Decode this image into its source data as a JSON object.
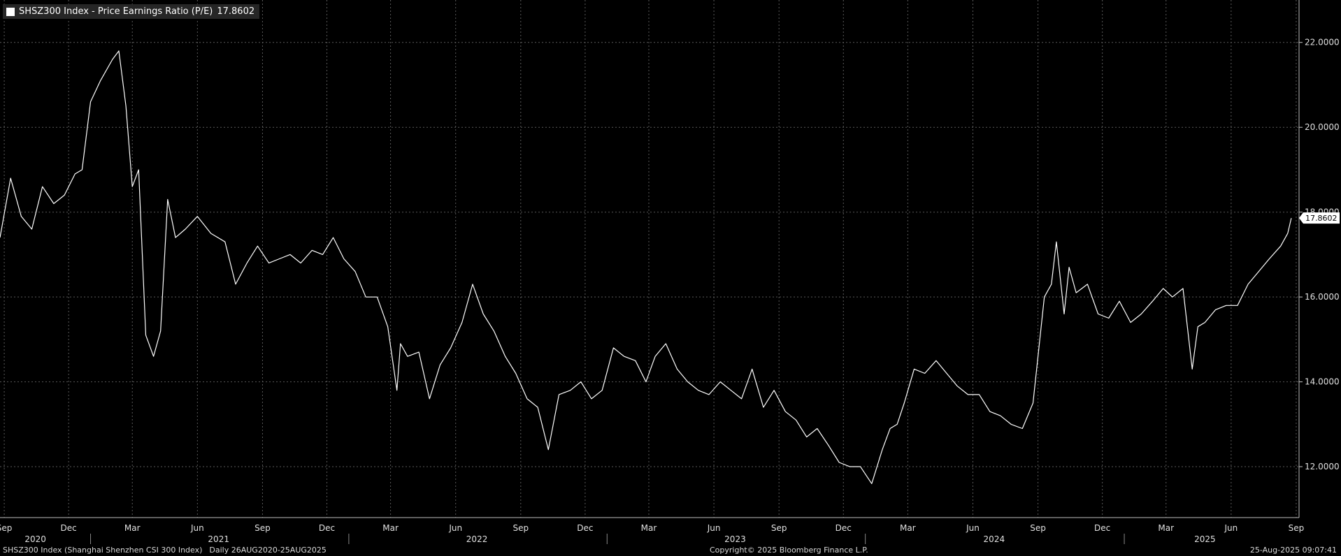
{
  "legend": {
    "label": "SHSZ300 Index - Price Earnings Ratio (P/E)",
    "last_value": "17.8602"
  },
  "footer": {
    "description": "SHSZ300 Index (Shanghai Shenzhen CSI 300 Index)",
    "range": "Daily 26AUG2020-25AUG2025",
    "copyright": "Copyright© 2025 Bloomberg Finance L.P.",
    "timestamp": "25-Aug-2025 09:07:41"
  },
  "colors": {
    "background": "#000000",
    "series": "#ffffff",
    "grid": "#5a5a5a",
    "panel": "#262626"
  },
  "chart_data": {
    "type": "line",
    "series": [
      {
        "name": "SHSZ300 Index - Price Earnings Ratio (P/E)",
        "x": [
          "2020-08-26",
          "2020-09-10",
          "2020-09-25",
          "2020-10-10",
          "2020-10-25",
          "2020-11-10",
          "2020-11-25",
          "2020-12-10",
          "2020-12-20",
          "2021-01-01",
          "2021-01-15",
          "2021-02-01",
          "2021-02-10",
          "2021-02-20",
          "2021-03-01",
          "2021-03-10",
          "2021-03-20",
          "2021-03-31",
          "2021-04-10",
          "2021-04-20",
          "2021-05-01",
          "2021-05-15",
          "2021-06-01",
          "2021-06-20",
          "2021-07-10",
          "2021-07-25",
          "2021-08-10",
          "2021-08-25",
          "2021-09-10",
          "2021-09-25",
          "2021-10-10",
          "2021-10-25",
          "2021-11-10",
          "2021-11-25",
          "2021-12-10",
          "2021-12-25",
          "2022-01-10",
          "2022-01-25",
          "2022-02-10",
          "2022-02-25",
          "2022-03-10",
          "2022-03-15",
          "2022-03-25",
          "2022-04-10",
          "2022-04-25",
          "2022-05-10",
          "2022-05-25",
          "2022-06-10",
          "2022-06-25",
          "2022-07-10",
          "2022-07-25",
          "2022-08-10",
          "2022-08-25",
          "2022-09-10",
          "2022-09-25",
          "2022-10-10",
          "2022-10-25",
          "2022-11-10",
          "2022-11-25",
          "2022-12-10",
          "2022-12-25",
          "2023-01-10",
          "2023-01-25",
          "2023-02-10",
          "2023-02-25",
          "2023-03-10",
          "2023-03-25",
          "2023-04-10",
          "2023-04-25",
          "2023-05-10",
          "2023-05-25",
          "2023-06-10",
          "2023-06-25",
          "2023-07-10",
          "2023-07-25",
          "2023-08-10",
          "2023-08-25",
          "2023-09-10",
          "2023-09-25",
          "2023-10-10",
          "2023-10-25",
          "2023-11-10",
          "2023-11-25",
          "2023-12-10",
          "2023-12-25",
          "2024-01-10",
          "2024-01-25",
          "2024-02-05",
          "2024-02-15",
          "2024-02-25",
          "2024-03-10",
          "2024-03-25",
          "2024-04-10",
          "2024-04-25",
          "2024-05-10",
          "2024-05-25",
          "2024-06-10",
          "2024-06-25",
          "2024-07-10",
          "2024-07-25",
          "2024-08-10",
          "2024-08-25",
          "2024-09-10",
          "2024-09-20",
          "2024-09-27",
          "2024-10-08",
          "2024-10-15",
          "2024-10-25",
          "2024-11-10",
          "2024-11-25",
          "2024-12-10",
          "2024-12-25",
          "2025-01-10",
          "2025-01-25",
          "2025-02-10",
          "2025-02-25",
          "2025-03-10",
          "2025-03-25",
          "2025-04-07",
          "2025-04-15",
          "2025-04-25",
          "2025-05-10",
          "2025-05-25",
          "2025-06-10",
          "2025-06-25",
          "2025-07-10",
          "2025-07-25",
          "2025-08-10",
          "2025-08-20",
          "2025-08-25"
        ],
        "values": [
          17.4,
          18.8,
          17.9,
          17.6,
          18.6,
          18.2,
          18.4,
          18.9,
          19.0,
          20.6,
          21.1,
          21.6,
          21.8,
          20.5,
          18.6,
          19.0,
          15.1,
          14.6,
          15.2,
          18.3,
          17.4,
          17.6,
          17.9,
          17.5,
          17.3,
          16.3,
          16.8,
          17.2,
          16.8,
          16.9,
          17.0,
          16.8,
          17.1,
          17.0,
          17.4,
          16.9,
          16.6,
          16.0,
          16.0,
          15.3,
          13.8,
          14.9,
          14.6,
          14.7,
          13.6,
          14.4,
          14.8,
          15.4,
          16.3,
          15.6,
          15.2,
          14.6,
          14.2,
          13.6,
          13.4,
          12.4,
          13.7,
          13.8,
          14.0,
          13.6,
          13.8,
          14.8,
          14.6,
          14.5,
          14.0,
          14.6,
          14.9,
          14.3,
          14.0,
          13.8,
          13.7,
          14.0,
          13.8,
          13.6,
          14.3,
          13.4,
          13.8,
          13.3,
          13.1,
          12.7,
          12.9,
          12.5,
          12.1,
          12.0,
          12.0,
          11.6,
          12.4,
          12.9,
          13.0,
          13.5,
          14.3,
          14.2,
          14.5,
          14.2,
          13.9,
          13.7,
          13.7,
          13.3,
          13.2,
          13.0,
          12.9,
          13.5,
          16.0,
          16.3,
          17.3,
          15.6,
          16.7,
          16.1,
          16.3,
          15.6,
          15.5,
          15.9,
          15.4,
          15.6,
          15.9,
          16.2,
          16.0,
          16.2,
          14.3,
          15.3,
          15.4,
          15.7,
          15.8,
          15.8,
          16.3,
          16.6,
          16.9,
          17.2,
          17.5,
          17.8602
        ]
      }
    ],
    "ylim": [
      10.8,
      23.0
    ],
    "xlim": [
      "2020-08-26",
      "2025-09-05"
    ],
    "y_ticks": [
      12.0,
      14.0,
      16.0,
      18.0,
      20.0,
      22.0
    ],
    "y_tick_labels": [
      "12.0000",
      "14.0000",
      "16.0000",
      "18.0000",
      "20.0000",
      "22.0000"
    ],
    "last_value_label": "17.8602",
    "x_month_ticks": [
      {
        "date": "2020-09-01",
        "label": "Sep"
      },
      {
        "date": "2020-12-01",
        "label": "Dec"
      },
      {
        "date": "2021-03-01",
        "label": "Mar"
      },
      {
        "date": "2021-06-01",
        "label": "Jun"
      },
      {
        "date": "2021-09-01",
        "label": "Sep"
      },
      {
        "date": "2021-12-01",
        "label": "Dec"
      },
      {
        "date": "2022-03-01",
        "label": "Mar"
      },
      {
        "date": "2022-06-01",
        "label": "Jun"
      },
      {
        "date": "2022-09-01",
        "label": "Sep"
      },
      {
        "date": "2022-12-01",
        "label": "Dec"
      },
      {
        "date": "2023-03-01",
        "label": "Mar"
      },
      {
        "date": "2023-06-01",
        "label": "Jun"
      },
      {
        "date": "2023-09-01",
        "label": "Sep"
      },
      {
        "date": "2023-12-01",
        "label": "Dec"
      },
      {
        "date": "2024-03-01",
        "label": "Mar"
      },
      {
        "date": "2024-06-01",
        "label": "Jun"
      },
      {
        "date": "2024-09-01",
        "label": "Sep"
      },
      {
        "date": "2024-12-01",
        "label": "Dec"
      },
      {
        "date": "2025-03-01",
        "label": "Mar"
      },
      {
        "date": "2025-06-01",
        "label": "Jun"
      },
      {
        "date": "2025-09-01",
        "label": "Sep"
      }
    ],
    "x_year_labels": [
      {
        "year": "2020",
        "center": "2020-10-15"
      },
      {
        "year": "2021",
        "center": "2021-07-01"
      },
      {
        "year": "2022",
        "center": "2022-07-01"
      },
      {
        "year": "2023",
        "center": "2023-07-01"
      },
      {
        "year": "2024",
        "center": "2024-07-01"
      },
      {
        "year": "2025",
        "center": "2025-04-25"
      }
    ],
    "x_year_separators": [
      "2021-01-01",
      "2022-01-01",
      "2023-01-01",
      "2024-01-01",
      "2025-01-01"
    ],
    "grid": true
  }
}
